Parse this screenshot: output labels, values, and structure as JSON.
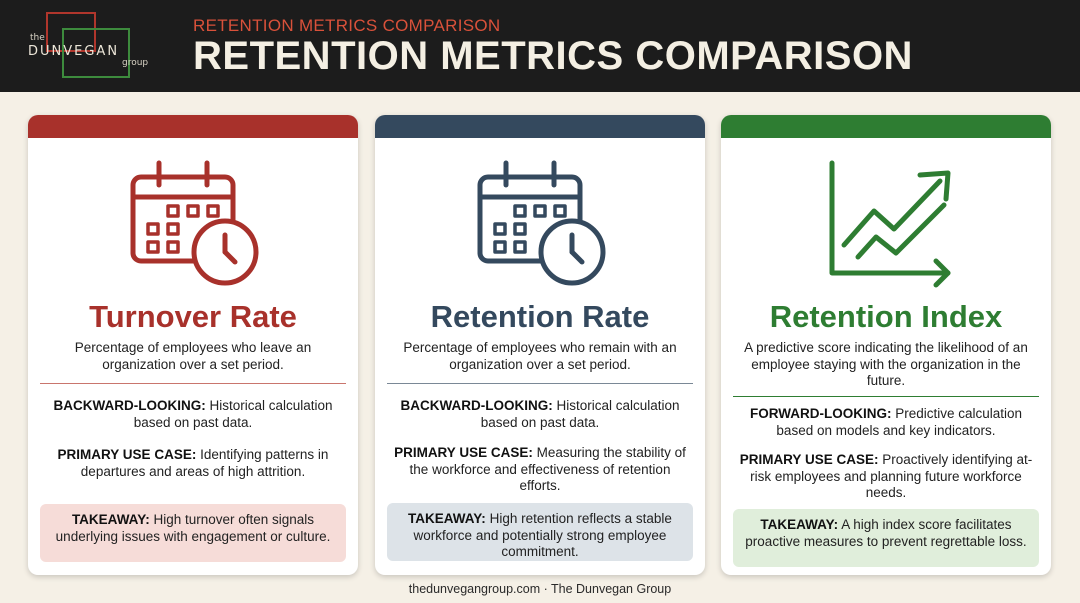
{
  "header": {
    "logo": {
      "the": "the",
      "name": "DUNVEGAN",
      "group": "group"
    },
    "kicker": "RETENTION METRICS COMPARISON",
    "title": "RETENTION METRICS COMPARISON"
  },
  "colors": {
    "turnover": "#a8312b",
    "retention": "#34495e",
    "index": "#2e7d32",
    "turnover_takeaway_bg": "#f6dcd8",
    "retention_takeaway_bg": "#dde3e8",
    "index_takeaway_bg": "#e0eedb"
  },
  "cards": [
    {
      "icon": "calendar-clock-icon",
      "title": "Turnover Rate",
      "description": "Percentage of employees who leave an organization over a set period.",
      "orientation_label": "BACKWARD-LOOKING:",
      "orientation_text": "Historical calculation based on past data.",
      "use_case_label": "PRIMARY USE CASE:",
      "use_case_text": "Identifying patterns in departures and areas of high attrition.",
      "takeaway_label": "TAKEAWAY:",
      "takeaway_text": "High turnover often signals underlying issues with engagement or culture."
    },
    {
      "icon": "calendar-clock-icon",
      "title": "Retention Rate",
      "description": "Percentage of employees who remain with an organization over a set period.",
      "orientation_label": "BACKWARD-LOOKING:",
      "orientation_text": "Historical calculation based on past data.",
      "use_case_label": "PRIMARY USE CASE:",
      "use_case_text": "Measuring the stability of the workforce and effectiveness of retention efforts.",
      "takeaway_label": "TAKEAWAY:",
      "takeaway_text": "High retention reflects a stable workforce and potentially strong employee commitment."
    },
    {
      "icon": "trend-up-chart-icon",
      "title": "Retention Index",
      "description": "A predictive score indicating the likelihood of an employee staying with the organization in the future.",
      "orientation_label": "FORWARD-LOOKING:",
      "orientation_text": "Predictive calculation based on models and key indicators.",
      "use_case_label": "PRIMARY USE CASE:",
      "use_case_text": "Proactively identifying at-risk employees and planning future workforce needs.",
      "takeaway_label": "TAKEAWAY:",
      "takeaway_text": "A high index score facilitates proactive measures to prevent regrettable loss."
    }
  ],
  "footer": "thedunvegangroup.com · The Dunvegan Group"
}
